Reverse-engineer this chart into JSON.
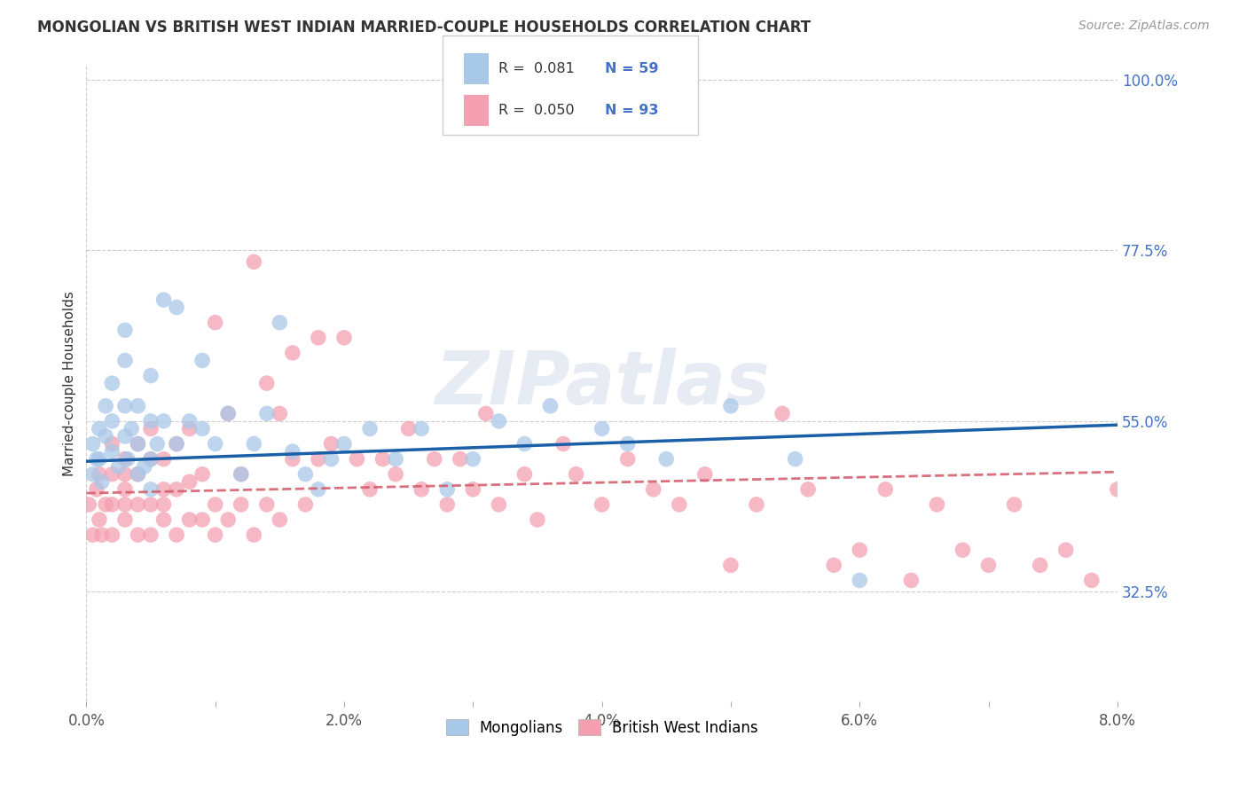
{
  "title": "MONGOLIAN VS BRITISH WEST INDIAN MARRIED-COUPLE HOUSEHOLDS CORRELATION CHART",
  "source": "Source: ZipAtlas.com",
  "ylabel": "Married-couple Households",
  "xlim": [
    0.0,
    0.08
  ],
  "ylim": [
    0.18,
    1.02
  ],
  "yticks": [
    0.325,
    0.55,
    0.775,
    1.0
  ],
  "ytick_labels": [
    "32.5%",
    "55.0%",
    "77.5%",
    "100.0%"
  ],
  "xtick_labels": [
    "0.0%",
    "",
    "2.0%",
    "",
    "4.0%",
    "",
    "6.0%",
    "",
    "8.0%"
  ],
  "xtick_vals": [
    0.0,
    0.01,
    0.02,
    0.03,
    0.04,
    0.05,
    0.06,
    0.07,
    0.08
  ],
  "mongolian_color": "#a8c8e8",
  "bwi_color": "#f4a0b0",
  "trend_blue": "#1a5fa8",
  "trend_pink": "#d46070",
  "watermark": "ZIPatlas",
  "legend_R_mongolian": "R =  0.081",
  "legend_N_mongolian": "N = 59",
  "legend_R_bwi": "R =  0.050",
  "legend_N_bwi": "N = 93",
  "mongolians_label": "Mongolians",
  "bwi_label": "British West Indians",
  "mongolian_x": [
    0.0005,
    0.0005,
    0.0008,
    0.001,
    0.001,
    0.0012,
    0.0015,
    0.0015,
    0.002,
    0.002,
    0.002,
    0.0025,
    0.003,
    0.003,
    0.003,
    0.003,
    0.0032,
    0.0035,
    0.004,
    0.004,
    0.004,
    0.0045,
    0.005,
    0.005,
    0.005,
    0.005,
    0.0055,
    0.006,
    0.006,
    0.007,
    0.007,
    0.008,
    0.009,
    0.009,
    0.01,
    0.011,
    0.012,
    0.013,
    0.014,
    0.015,
    0.016,
    0.017,
    0.018,
    0.019,
    0.02,
    0.022,
    0.024,
    0.026,
    0.028,
    0.03,
    0.032,
    0.034,
    0.036,
    0.04,
    0.042,
    0.045,
    0.05,
    0.055,
    0.06
  ],
  "mongolian_y": [
    0.48,
    0.52,
    0.5,
    0.5,
    0.54,
    0.47,
    0.53,
    0.57,
    0.51,
    0.55,
    0.6,
    0.49,
    0.53,
    0.57,
    0.63,
    0.67,
    0.5,
    0.54,
    0.48,
    0.52,
    0.57,
    0.49,
    0.46,
    0.5,
    0.55,
    0.61,
    0.52,
    0.55,
    0.71,
    0.52,
    0.7,
    0.55,
    0.54,
    0.63,
    0.52,
    0.56,
    0.48,
    0.52,
    0.56,
    0.68,
    0.51,
    0.48,
    0.46,
    0.5,
    0.52,
    0.54,
    0.5,
    0.54,
    0.46,
    0.5,
    0.55,
    0.52,
    0.57,
    0.54,
    0.52,
    0.5,
    0.57,
    0.5,
    0.34
  ],
  "bwi_x": [
    0.0002,
    0.0005,
    0.0008,
    0.001,
    0.001,
    0.0012,
    0.0015,
    0.002,
    0.002,
    0.002,
    0.002,
    0.003,
    0.003,
    0.003,
    0.003,
    0.003,
    0.004,
    0.004,
    0.004,
    0.004,
    0.005,
    0.005,
    0.005,
    0.005,
    0.006,
    0.006,
    0.006,
    0.006,
    0.007,
    0.007,
    0.007,
    0.008,
    0.008,
    0.008,
    0.009,
    0.009,
    0.01,
    0.01,
    0.01,
    0.011,
    0.011,
    0.012,
    0.012,
    0.013,
    0.013,
    0.014,
    0.014,
    0.015,
    0.015,
    0.016,
    0.016,
    0.017,
    0.018,
    0.018,
    0.019,
    0.02,
    0.021,
    0.022,
    0.023,
    0.024,
    0.025,
    0.026,
    0.027,
    0.028,
    0.029,
    0.03,
    0.031,
    0.032,
    0.034,
    0.035,
    0.037,
    0.038,
    0.04,
    0.042,
    0.044,
    0.046,
    0.048,
    0.05,
    0.052,
    0.054,
    0.056,
    0.058,
    0.06,
    0.062,
    0.064,
    0.066,
    0.068,
    0.07,
    0.072,
    0.074,
    0.076,
    0.078,
    0.08
  ],
  "bwi_y": [
    0.44,
    0.4,
    0.46,
    0.42,
    0.48,
    0.4,
    0.44,
    0.4,
    0.44,
    0.48,
    0.52,
    0.42,
    0.46,
    0.5,
    0.44,
    0.48,
    0.4,
    0.44,
    0.48,
    0.52,
    0.4,
    0.44,
    0.5,
    0.54,
    0.42,
    0.46,
    0.5,
    0.44,
    0.4,
    0.46,
    0.52,
    0.42,
    0.47,
    0.54,
    0.42,
    0.48,
    0.4,
    0.44,
    0.68,
    0.42,
    0.56,
    0.44,
    0.48,
    0.4,
    0.76,
    0.44,
    0.6,
    0.42,
    0.56,
    0.5,
    0.64,
    0.44,
    0.5,
    0.66,
    0.52,
    0.66,
    0.5,
    0.46,
    0.5,
    0.48,
    0.54,
    0.46,
    0.5,
    0.44,
    0.5,
    0.46,
    0.56,
    0.44,
    0.48,
    0.42,
    0.52,
    0.48,
    0.44,
    0.5,
    0.46,
    0.44,
    0.48,
    0.36,
    0.44,
    0.56,
    0.46,
    0.36,
    0.38,
    0.46,
    0.34,
    0.44,
    0.38,
    0.36,
    0.44,
    0.36,
    0.38,
    0.34,
    0.46
  ],
  "trend_blue_y0": 0.497,
  "trend_blue_y1": 0.545,
  "trend_pink_y0": 0.455,
  "trend_pink_y1": 0.483
}
